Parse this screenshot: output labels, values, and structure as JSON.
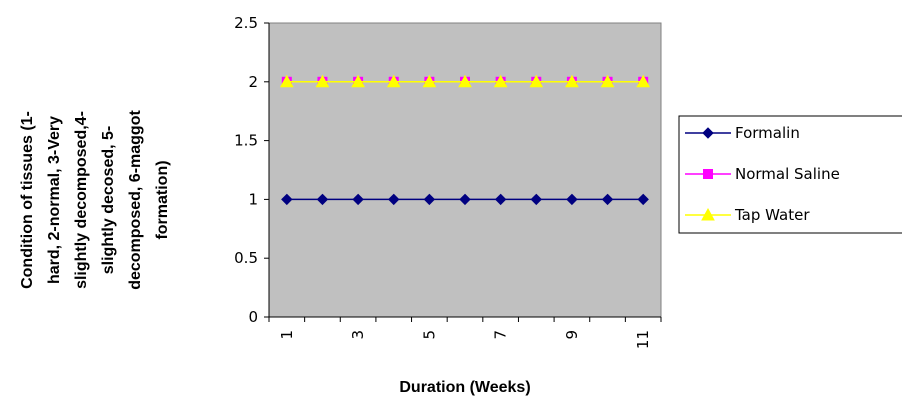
{
  "chart_data": {
    "type": "line",
    "x": [
      1,
      2,
      3,
      4,
      5,
      6,
      7,
      8,
      9,
      10,
      11
    ],
    "x_tick_labels": [
      "1",
      "3",
      "5",
      "7",
      "9",
      "11"
    ],
    "series": [
      {
        "name": "Formalin",
        "values": [
          1,
          1,
          1,
          1,
          1,
          1,
          1,
          1,
          1,
          1,
          1
        ],
        "color": "#000080",
        "marker": "diamond"
      },
      {
        "name": "Normal Saline",
        "values": [
          2,
          2,
          2,
          2,
          2,
          2,
          2,
          2,
          2,
          2,
          2
        ],
        "color": "#FF00FF",
        "marker": "square"
      },
      {
        "name": "Tap Water",
        "values": [
          2,
          2,
          2,
          2,
          2,
          2,
          2,
          2,
          2,
          2,
          2
        ],
        "color": "#FFFF00",
        "marker": "triangle"
      }
    ],
    "ylim": [
      0,
      2.5
    ],
    "y_ticks": [
      "0",
      "0.5",
      "1",
      "1.5",
      "2",
      "2.5"
    ],
    "xlabel": "Duration (Weeks)",
    "ylabel_lines": [
      "Condition of tissues (1-",
      "hard, 2-normal, 3-Very",
      "slightly  decomposed,4-",
      "slightly decosed, 5-",
      "decomposed, 6-maggot",
      "formation)"
    ],
    "plot_background": "#C0C0C0",
    "legend_position": "right",
    "grid": false
  }
}
